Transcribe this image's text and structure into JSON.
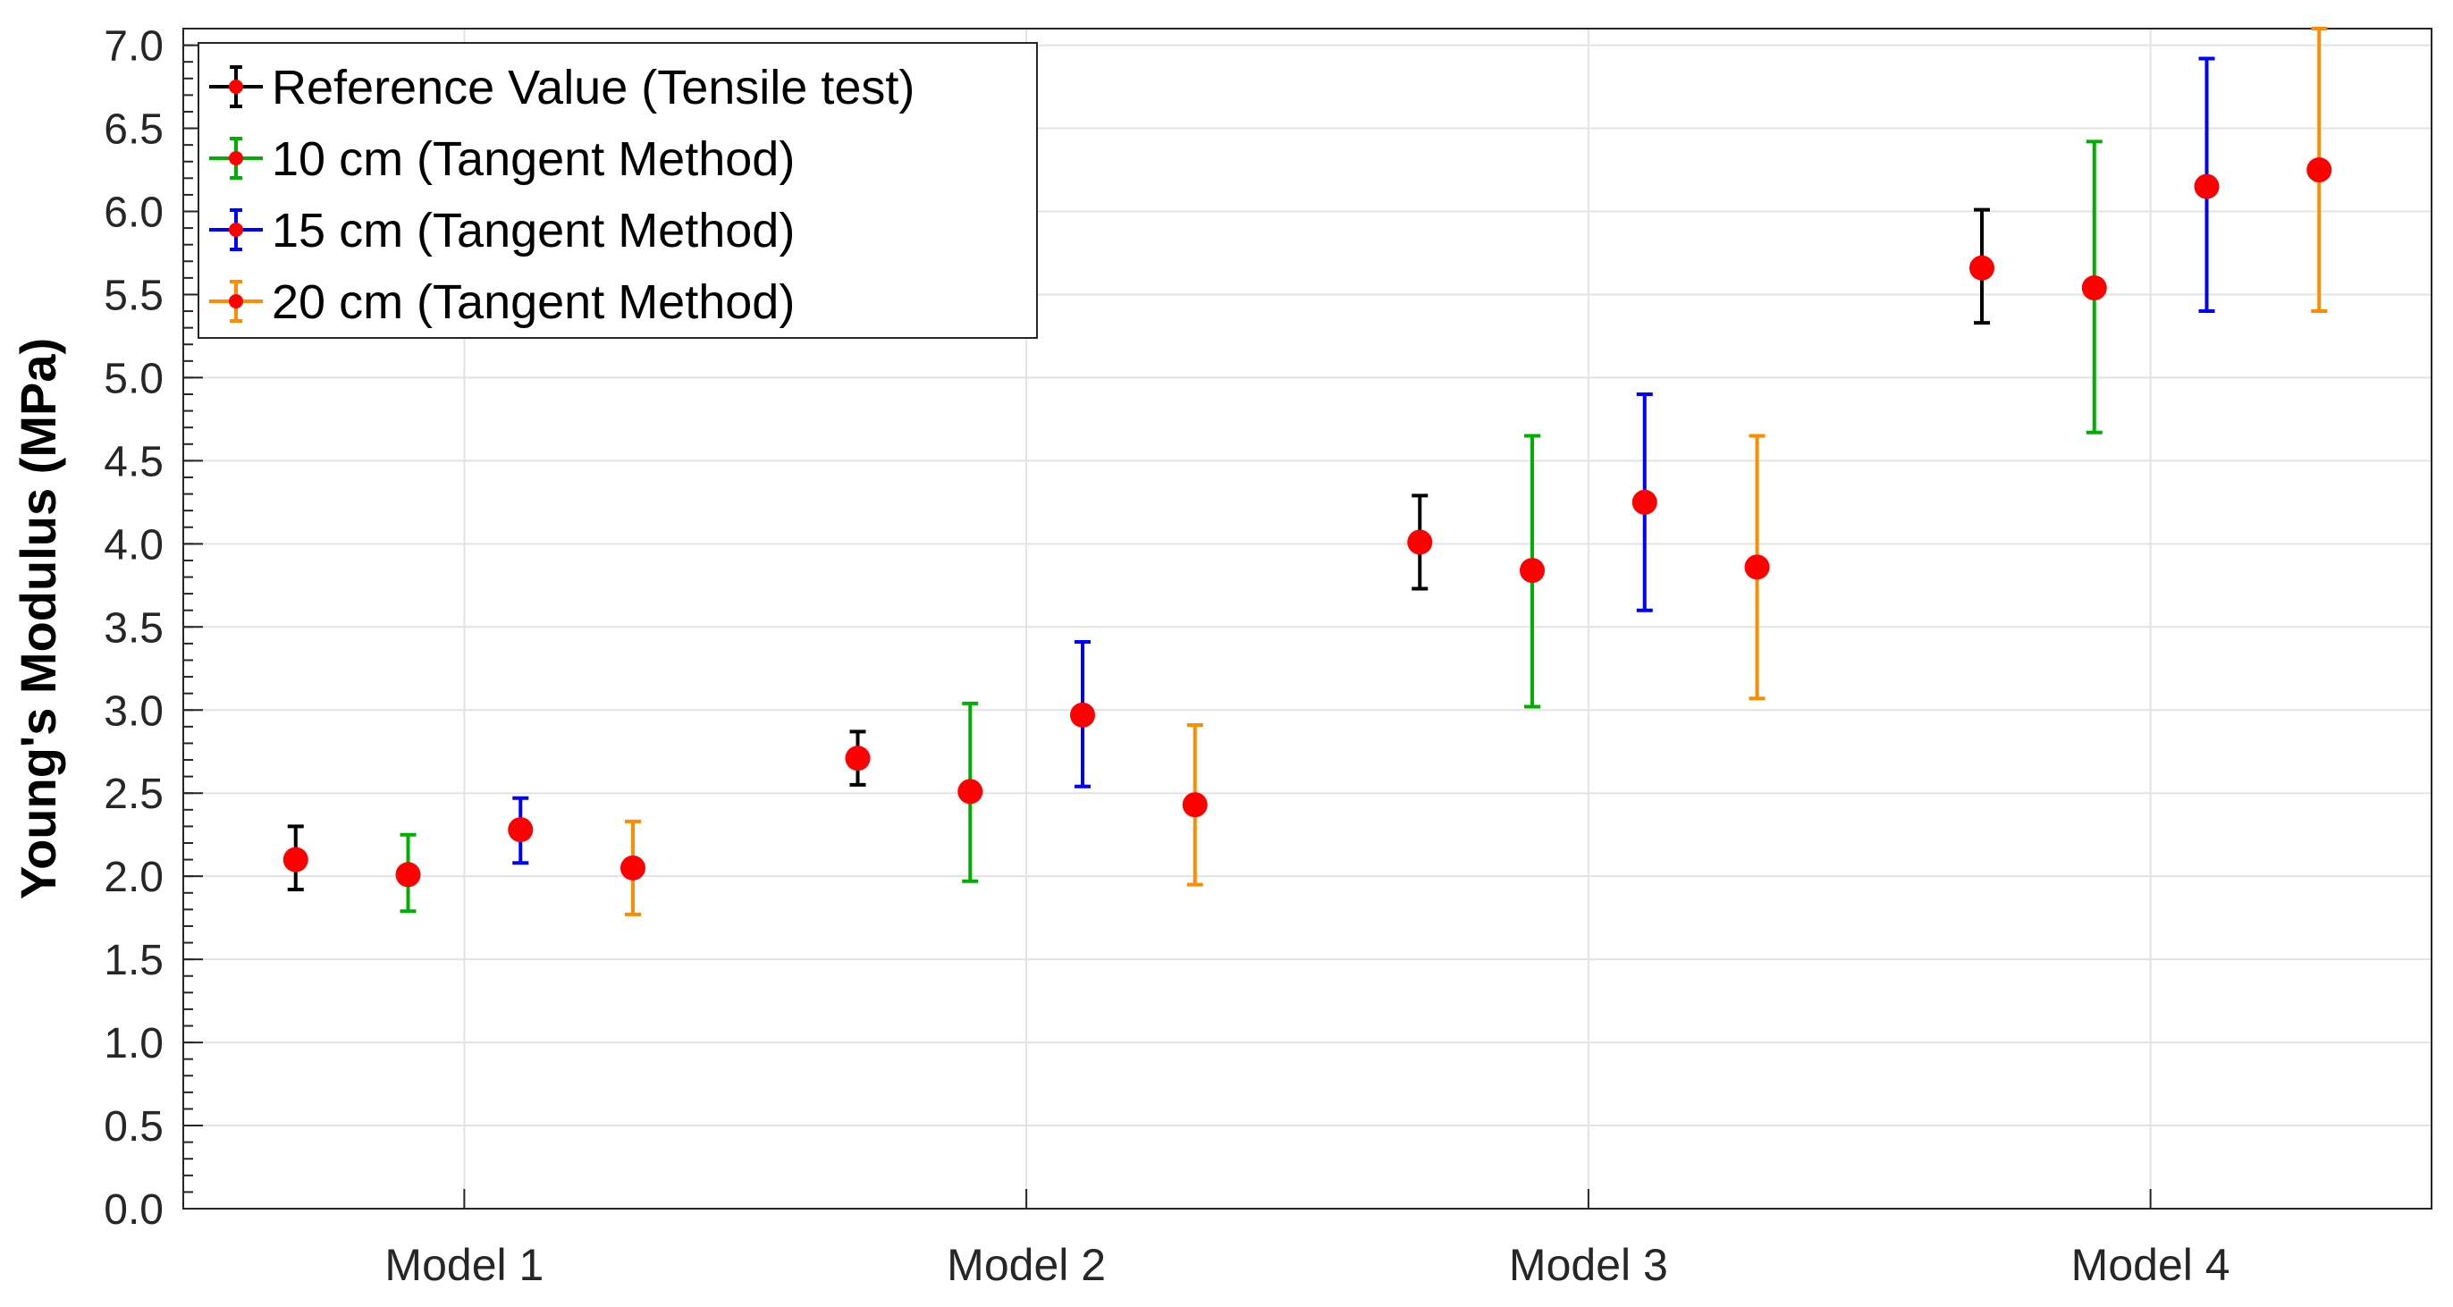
{
  "chart_data": {
    "type": "errorbar",
    "categories": [
      "Model 1",
      "Model 2",
      "Model 3",
      "Model 4"
    ],
    "ylabel": "Young's Modulus (MPa)",
    "xlabel": "",
    "ylim": [
      0,
      7.1
    ],
    "yticks": [
      0.0,
      0.5,
      1.0,
      1.5,
      2.0,
      2.5,
      3.0,
      3.5,
      4.0,
      4.5,
      5.0,
      5.5,
      6.0,
      6.5,
      7.0
    ],
    "ytick_labels": [
      "0.0",
      "0.5",
      "1.0",
      "1.5",
      "2.0",
      "2.5",
      "3.0",
      "3.5",
      "4.0",
      "4.5",
      "5.0",
      "5.5",
      "6.0",
      "6.5",
      "7.0"
    ],
    "grid": true,
    "legend_position": "top-left",
    "marker_color": "#ff0000",
    "series": [
      {
        "name": "Reference Value (Tensile test)",
        "color": "#000000",
        "values": [
          2.1,
          2.71,
          4.01,
          5.66
        ],
        "lower": [
          1.92,
          2.55,
          3.73,
          5.33
        ],
        "upper": [
          2.3,
          2.87,
          4.29,
          6.01
        ]
      },
      {
        "name": "10 cm (Tangent Method)",
        "color": "#00b000",
        "values": [
          2.01,
          2.51,
          3.84,
          5.54
        ],
        "lower": [
          1.79,
          1.97,
          3.02,
          4.67
        ],
        "upper": [
          2.25,
          3.04,
          4.65,
          6.42
        ]
      },
      {
        "name": "15 cm (Tangent Method)",
        "color": "#0000ff",
        "values": [
          2.28,
          2.97,
          4.25,
          6.15
        ],
        "lower": [
          2.08,
          2.54,
          3.6,
          5.4
        ],
        "upper": [
          2.47,
          3.41,
          4.9,
          6.92
        ]
      },
      {
        "name": "20 cm (Tangent Method)",
        "color": "#ff8c00",
        "values": [
          2.05,
          2.43,
          3.86,
          6.25
        ],
        "lower": [
          1.77,
          1.95,
          3.07,
          5.4
        ],
        "upper": [
          2.33,
          2.91,
          4.65,
          7.1
        ]
      }
    ]
  }
}
